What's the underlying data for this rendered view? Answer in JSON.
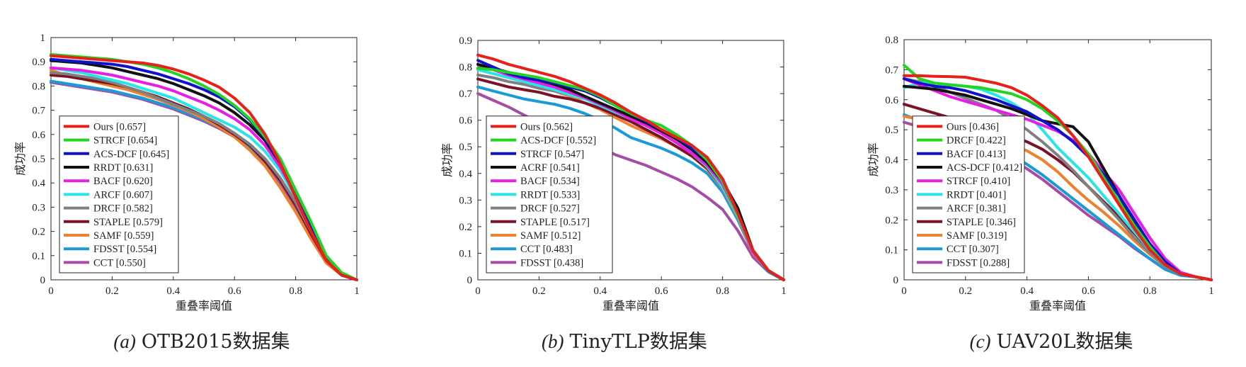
{
  "chart_data": [
    {
      "type": "line",
      "caption_prefix": "(a)",
      "caption_text": "OTB2015数据集",
      "xlabel": "重叠率阈值",
      "ylabel": "成功率",
      "xlim": [
        0,
        1
      ],
      "ylim": [
        0,
        1
      ],
      "xticks": [
        "0",
        "0.2",
        "0.4",
        "0.6",
        "0.8",
        "1"
      ],
      "yticks": [
        "0",
        "0.1",
        "0.2",
        "0.3",
        "0.4",
        "0.5",
        "0.6",
        "0.7",
        "0.8",
        "0.9",
        "1"
      ],
      "grid": false,
      "legend_position": "bottom-left",
      "x": [
        0,
        0.05,
        0.1,
        0.15,
        0.2,
        0.25,
        0.3,
        0.35,
        0.4,
        0.45,
        0.5,
        0.55,
        0.6,
        0.65,
        0.7,
        0.75,
        0.8,
        0.85,
        0.9,
        0.95,
        1
      ],
      "series": [
        {
          "name": "Ours [0.657]",
          "color": "#e8201c",
          "values": [
            0.925,
            0.92,
            0.915,
            0.91,
            0.905,
            0.9,
            0.895,
            0.885,
            0.87,
            0.85,
            0.825,
            0.795,
            0.75,
            0.69,
            0.6,
            0.48,
            0.34,
            0.2,
            0.08,
            0.02,
            0.0
          ]
        },
        {
          "name": "STRCF [0.654]",
          "color": "#21d621",
          "values": [
            0.93,
            0.925,
            0.92,
            0.915,
            0.91,
            0.9,
            0.89,
            0.875,
            0.855,
            0.83,
            0.8,
            0.765,
            0.72,
            0.665,
            0.59,
            0.5,
            0.37,
            0.24,
            0.1,
            0.03,
            0.0
          ]
        },
        {
          "name": "ACS-DCF [0.645]",
          "color": "#1111cc",
          "values": [
            0.91,
            0.905,
            0.9,
            0.895,
            0.89,
            0.88,
            0.865,
            0.85,
            0.83,
            0.81,
            0.785,
            0.755,
            0.715,
            0.66,
            0.585,
            0.48,
            0.35,
            0.22,
            0.09,
            0.02,
            0.0
          ]
        },
        {
          "name": "RRDT [0.631]",
          "color": "#111111",
          "values": [
            0.905,
            0.9,
            0.895,
            0.885,
            0.875,
            0.86,
            0.845,
            0.83,
            0.81,
            0.785,
            0.76,
            0.73,
            0.69,
            0.64,
            0.575,
            0.48,
            0.36,
            0.22,
            0.09,
            0.02,
            0.0
          ]
        },
        {
          "name": "BACF [0.620]",
          "color": "#e61ee6",
          "values": [
            0.875,
            0.87,
            0.865,
            0.855,
            0.845,
            0.83,
            0.815,
            0.8,
            0.78,
            0.755,
            0.73,
            0.7,
            0.665,
            0.62,
            0.555,
            0.465,
            0.35,
            0.22,
            0.09,
            0.02,
            0.0
          ]
        },
        {
          "name": "ARCF [0.607]",
          "color": "#29e6e6",
          "values": [
            0.875,
            0.865,
            0.855,
            0.84,
            0.825,
            0.81,
            0.79,
            0.77,
            0.75,
            0.72,
            0.69,
            0.66,
            0.63,
            0.59,
            0.53,
            0.45,
            0.34,
            0.21,
            0.09,
            0.02,
            0.0
          ]
        },
        {
          "name": "DRCF [0.582]",
          "color": "#808080",
          "values": [
            0.855,
            0.85,
            0.84,
            0.83,
            0.815,
            0.795,
            0.775,
            0.75,
            0.725,
            0.7,
            0.675,
            0.645,
            0.605,
            0.56,
            0.5,
            0.42,
            0.32,
            0.2,
            0.08,
            0.02,
            0.0
          ]
        },
        {
          "name": "STAPLE [0.579]",
          "color": "#7a1326",
          "values": [
            0.845,
            0.84,
            0.83,
            0.82,
            0.81,
            0.795,
            0.775,
            0.755,
            0.73,
            0.705,
            0.675,
            0.64,
            0.6,
            0.555,
            0.49,
            0.41,
            0.31,
            0.19,
            0.08,
            0.02,
            0.0
          ]
        },
        {
          "name": "SAMF [0.559]",
          "color": "#ee8130",
          "values": [
            0.865,
            0.845,
            0.83,
            0.815,
            0.8,
            0.785,
            0.765,
            0.745,
            0.72,
            0.695,
            0.665,
            0.63,
            0.59,
            0.535,
            0.47,
            0.38,
            0.28,
            0.17,
            0.07,
            0.02,
            0.0
          ]
        },
        {
          "name": "FDSST [0.554]",
          "color": "#1a9ad6",
          "values": [
            0.82,
            0.81,
            0.8,
            0.79,
            0.78,
            0.765,
            0.75,
            0.73,
            0.71,
            0.685,
            0.66,
            0.63,
            0.595,
            0.55,
            0.49,
            0.41,
            0.31,
            0.19,
            0.08,
            0.02,
            0.0
          ]
        },
        {
          "name": "CCT [0.550]",
          "color": "#a64ca6",
          "values": [
            0.815,
            0.805,
            0.795,
            0.785,
            0.775,
            0.76,
            0.745,
            0.725,
            0.705,
            0.68,
            0.655,
            0.625,
            0.59,
            0.54,
            0.475,
            0.39,
            0.29,
            0.18,
            0.07,
            0.02,
            0.0
          ]
        }
      ]
    },
    {
      "type": "line",
      "caption_prefix": "(b)",
      "caption_text": "TinyTLP数据集",
      "xlabel": "重叠率阈值",
      "ylabel": "成功率",
      "xlim": [
        0,
        1
      ],
      "ylim": [
        0,
        0.9
      ],
      "xticks": [
        "0",
        "0.2",
        "0.4",
        "0.6",
        "0.8",
        "1"
      ],
      "yticks": [
        "0",
        "0.1",
        "0.2",
        "0.3",
        "0.4",
        "0.5",
        "0.6",
        "0.7",
        "0.8",
        "0.9"
      ],
      "grid": false,
      "legend_position": "bottom-left",
      "x": [
        0,
        0.05,
        0.1,
        0.15,
        0.2,
        0.25,
        0.3,
        0.35,
        0.4,
        0.45,
        0.5,
        0.55,
        0.6,
        0.65,
        0.7,
        0.75,
        0.8,
        0.85,
        0.9,
        0.95,
        1
      ],
      "series": [
        {
          "name": "Ours [0.562]",
          "color": "#e8201c",
          "values": [
            0.845,
            0.83,
            0.81,
            0.795,
            0.78,
            0.765,
            0.745,
            0.72,
            0.695,
            0.665,
            0.63,
            0.6,
            0.565,
            0.535,
            0.505,
            0.46,
            0.38,
            0.25,
            0.11,
            0.035,
            0.0
          ]
        },
        {
          "name": "ACS-DCF [0.552]",
          "color": "#21d621",
          "values": [
            0.795,
            0.79,
            0.78,
            0.77,
            0.76,
            0.745,
            0.73,
            0.715,
            0.69,
            0.655,
            0.625,
            0.6,
            0.58,
            0.545,
            0.505,
            0.45,
            0.37,
            0.245,
            0.11,
            0.035,
            0.0
          ]
        },
        {
          "name": "STRCF [0.547]",
          "color": "#1111cc",
          "values": [
            0.825,
            0.8,
            0.775,
            0.76,
            0.75,
            0.74,
            0.725,
            0.71,
            0.685,
            0.655,
            0.625,
            0.595,
            0.565,
            0.535,
            0.495,
            0.45,
            0.38,
            0.25,
            0.11,
            0.035,
            0.0
          ]
        },
        {
          "name": "ACRF [0.541]",
          "color": "#111111",
          "values": [
            0.81,
            0.795,
            0.78,
            0.765,
            0.75,
            0.735,
            0.715,
            0.69,
            0.665,
            0.64,
            0.615,
            0.59,
            0.56,
            0.53,
            0.49,
            0.44,
            0.37,
            0.27,
            0.11,
            0.035,
            0.0
          ]
        },
        {
          "name": "BACF [0.534]",
          "color": "#e61ee6",
          "values": [
            0.81,
            0.79,
            0.77,
            0.755,
            0.74,
            0.725,
            0.705,
            0.685,
            0.66,
            0.635,
            0.605,
            0.58,
            0.55,
            0.515,
            0.475,
            0.43,
            0.36,
            0.245,
            0.105,
            0.035,
            0.0
          ]
        },
        {
          "name": "RRDT [0.533]",
          "color": "#29e6e6",
          "values": [
            0.79,
            0.775,
            0.76,
            0.745,
            0.73,
            0.715,
            0.695,
            0.68,
            0.655,
            0.63,
            0.605,
            0.58,
            0.55,
            0.515,
            0.475,
            0.425,
            0.35,
            0.24,
            0.105,
            0.035,
            0.0
          ]
        },
        {
          "name": "DRCF [0.527]",
          "color": "#808080",
          "values": [
            0.77,
            0.76,
            0.745,
            0.735,
            0.72,
            0.71,
            0.695,
            0.68,
            0.66,
            0.635,
            0.61,
            0.585,
            0.555,
            0.52,
            0.48,
            0.425,
            0.35,
            0.24,
            0.105,
            0.035,
            0.0
          ]
        },
        {
          "name": "STAPLE [0.517]",
          "color": "#7a1326",
          "values": [
            0.755,
            0.74,
            0.725,
            0.715,
            0.705,
            0.69,
            0.68,
            0.665,
            0.645,
            0.62,
            0.595,
            0.565,
            0.535,
            0.5,
            0.465,
            0.42,
            0.35,
            0.24,
            0.105,
            0.035,
            0.0
          ]
        },
        {
          "name": "SAMF [0.512]",
          "color": "#ee8130",
          "values": [
            0.79,
            0.775,
            0.76,
            0.745,
            0.73,
            0.71,
            0.69,
            0.665,
            0.64,
            0.61,
            0.58,
            0.555,
            0.53,
            0.5,
            0.465,
            0.415,
            0.345,
            0.235,
            0.1,
            0.035,
            0.0
          ]
        },
        {
          "name": "CCT [0.483]",
          "color": "#1a9ad6",
          "values": [
            0.725,
            0.71,
            0.695,
            0.68,
            0.67,
            0.66,
            0.645,
            0.625,
            0.6,
            0.57,
            0.535,
            0.515,
            0.495,
            0.47,
            0.44,
            0.4,
            0.33,
            0.225,
            0.1,
            0.03,
            0.0
          ]
        },
        {
          "name": "FDSST [0.438]",
          "color": "#a64ca6",
          "values": [
            0.7,
            0.675,
            0.65,
            0.62,
            0.59,
            0.565,
            0.54,
            0.52,
            0.5,
            0.47,
            0.45,
            0.43,
            0.405,
            0.38,
            0.35,
            0.31,
            0.265,
            0.185,
            0.085,
            0.03,
            0.0
          ]
        }
      ]
    },
    {
      "type": "line",
      "caption_prefix": "(c)",
      "caption_text": "UAV20L数据集",
      "xlabel": "重叠率阈值",
      "ylabel": "成功率",
      "xlim": [
        0,
        1
      ],
      "ylim": [
        0,
        0.8
      ],
      "xticks": [
        "0",
        "0.2",
        "0.4",
        "0.6",
        "0.8",
        "1"
      ],
      "yticks": [
        "0",
        "0.1",
        "0.2",
        "0.3",
        "0.4",
        "0.5",
        "0.6",
        "0.7",
        "0.8"
      ],
      "grid": false,
      "legend_position": "bottom-left",
      "x": [
        0,
        0.05,
        0.1,
        0.15,
        0.2,
        0.25,
        0.3,
        0.35,
        0.4,
        0.45,
        0.5,
        0.55,
        0.6,
        0.65,
        0.7,
        0.75,
        0.8,
        0.85,
        0.9,
        0.95,
        1
      ],
      "series": [
        {
          "name": "Ours [0.436]",
          "color": "#e8201c",
          "values": [
            0.68,
            0.68,
            0.678,
            0.677,
            0.675,
            0.665,
            0.655,
            0.64,
            0.615,
            0.58,
            0.54,
            0.48,
            0.41,
            0.33,
            0.25,
            0.17,
            0.1,
            0.05,
            0.02,
            0.01,
            0.0
          ]
        },
        {
          "name": "DRCF [0.422]",
          "color": "#21d621",
          "values": [
            0.715,
            0.67,
            0.655,
            0.65,
            0.645,
            0.64,
            0.63,
            0.62,
            0.6,
            0.57,
            0.53,
            0.48,
            0.42,
            0.34,
            0.26,
            0.18,
            0.11,
            0.05,
            0.02,
            0.01,
            0.0
          ]
        },
        {
          "name": "BACF [0.413]",
          "color": "#1111cc",
          "values": [
            0.67,
            0.655,
            0.645,
            0.64,
            0.63,
            0.615,
            0.6,
            0.58,
            0.56,
            0.53,
            0.5,
            0.46,
            0.41,
            0.35,
            0.28,
            0.2,
            0.12,
            0.06,
            0.02,
            0.01,
            0.0
          ]
        },
        {
          "name": "ACS-DCF [0.412]",
          "color": "#111111",
          "values": [
            0.645,
            0.64,
            0.635,
            0.625,
            0.615,
            0.6,
            0.585,
            0.57,
            0.55,
            0.53,
            0.52,
            0.51,
            0.46,
            0.37,
            0.28,
            0.19,
            0.11,
            0.05,
            0.02,
            0.01,
            0.0
          ]
        },
        {
          "name": "STRCF [0.410]",
          "color": "#e61ee6",
          "values": [
            0.67,
            0.65,
            0.63,
            0.61,
            0.595,
            0.58,
            0.565,
            0.55,
            0.535,
            0.515,
            0.495,
            0.465,
            0.42,
            0.36,
            0.3,
            0.22,
            0.14,
            0.07,
            0.025,
            0.01,
            0.0
          ]
        },
        {
          "name": "RRDT [0.401]",
          "color": "#29e6e6",
          "values": [
            0.64,
            0.655,
            0.655,
            0.65,
            0.645,
            0.635,
            0.615,
            0.59,
            0.555,
            0.5,
            0.44,
            0.39,
            0.34,
            0.28,
            0.22,
            0.16,
            0.1,
            0.05,
            0.02,
            0.01,
            0.0
          ]
        },
        {
          "name": "ARCF [0.381]",
          "color": "#808080",
          "values": [
            0.67,
            0.66,
            0.645,
            0.625,
            0.605,
            0.585,
            0.565,
            0.535,
            0.5,
            0.46,
            0.415,
            0.365,
            0.31,
            0.255,
            0.2,
            0.14,
            0.09,
            0.045,
            0.02,
            0.01,
            0.0
          ]
        },
        {
          "name": "STAPLE [0.346]",
          "color": "#7a1326",
          "values": [
            0.585,
            0.57,
            0.555,
            0.54,
            0.525,
            0.51,
            0.495,
            0.48,
            0.46,
            0.435,
            0.4,
            0.36,
            0.31,
            0.26,
            0.21,
            0.155,
            0.1,
            0.05,
            0.02,
            0.01,
            0.0
          ]
        },
        {
          "name": "SAMF [0.319]",
          "color": "#ee8130",
          "values": [
            0.545,
            0.535,
            0.525,
            0.51,
            0.5,
            0.485,
            0.47,
            0.45,
            0.43,
            0.4,
            0.36,
            0.31,
            0.265,
            0.225,
            0.18,
            0.13,
            0.085,
            0.045,
            0.02,
            0.01,
            0.0
          ]
        },
        {
          "name": "CCT [0.307]",
          "color": "#1a9ad6",
          "values": [
            0.55,
            0.53,
            0.515,
            0.5,
            0.48,
            0.46,
            0.44,
            0.415,
            0.385,
            0.35,
            0.31,
            0.27,
            0.23,
            0.19,
            0.15,
            0.11,
            0.07,
            0.035,
            0.015,
            0.01,
            0.0
          ]
        },
        {
          "name": "FDSST [0.288]",
          "color": "#a64ca6",
          "values": [
            0.525,
            0.51,
            0.5,
            0.485,
            0.47,
            0.45,
            0.425,
            0.4,
            0.37,
            0.335,
            0.295,
            0.255,
            0.215,
            0.18,
            0.145,
            0.105,
            0.07,
            0.035,
            0.015,
            0.01,
            0.0
          ]
        }
      ]
    }
  ]
}
